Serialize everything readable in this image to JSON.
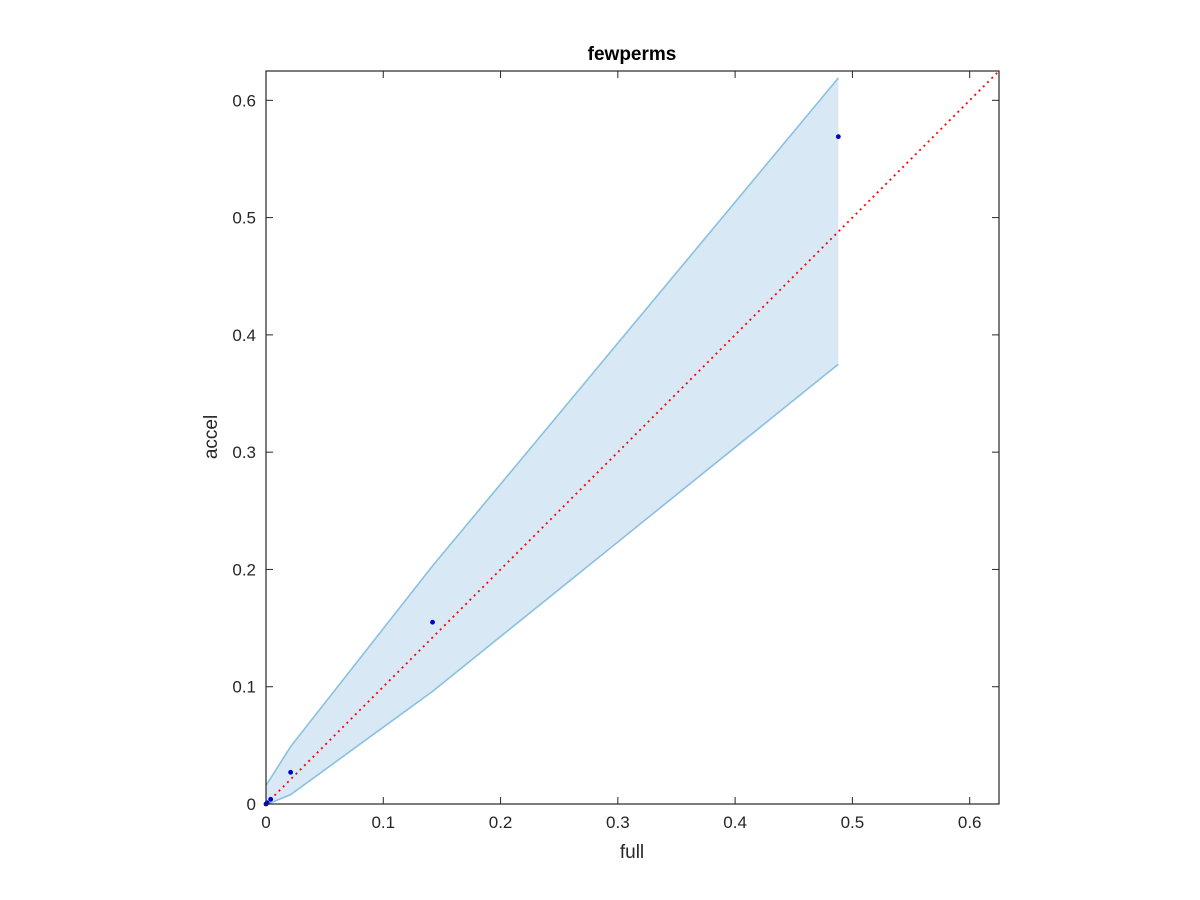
{
  "chart_data": {
    "type": "scatter",
    "title": "fewperms",
    "xlabel": "full",
    "ylabel": "accel",
    "xlim": [
      0,
      0.625
    ],
    "ylim": [
      0,
      0.625
    ],
    "xticks": [
      0,
      0.1,
      0.2,
      0.3,
      0.4,
      0.5,
      0.6
    ],
    "yticks": [
      0,
      0.1,
      0.2,
      0.3,
      0.4,
      0.5,
      0.6
    ],
    "xtick_labels": [
      "0",
      "0.1",
      "0.2",
      "0.3",
      "0.4",
      "0.5",
      "0.6"
    ],
    "ytick_labels": [
      "0",
      "0.1",
      "0.2",
      "0.3",
      "0.4",
      "0.5",
      "0.6"
    ],
    "grid": false,
    "points": {
      "x": [
        0.0,
        0.001,
        0.004,
        0.021,
        0.142,
        0.488
      ],
      "y": [
        0.0,
        0.001,
        0.004,
        0.027,
        0.155,
        0.569
      ],
      "color": "#0000cc"
    },
    "band": {
      "x": [
        0.0,
        0.004,
        0.021,
        0.142,
        0.488
      ],
      "upper": [
        0.016,
        0.022,
        0.049,
        0.203,
        0.619
      ],
      "lower": [
        0.0,
        0.001,
        0.008,
        0.096,
        0.375
      ],
      "fill_color": "#d9e8f5",
      "edge_color": "#8ac0e0"
    },
    "reference_line": {
      "x": [
        0,
        0.625
      ],
      "y": [
        0,
        0.625
      ],
      "style": "dotted",
      "color": "#ff0000"
    }
  }
}
